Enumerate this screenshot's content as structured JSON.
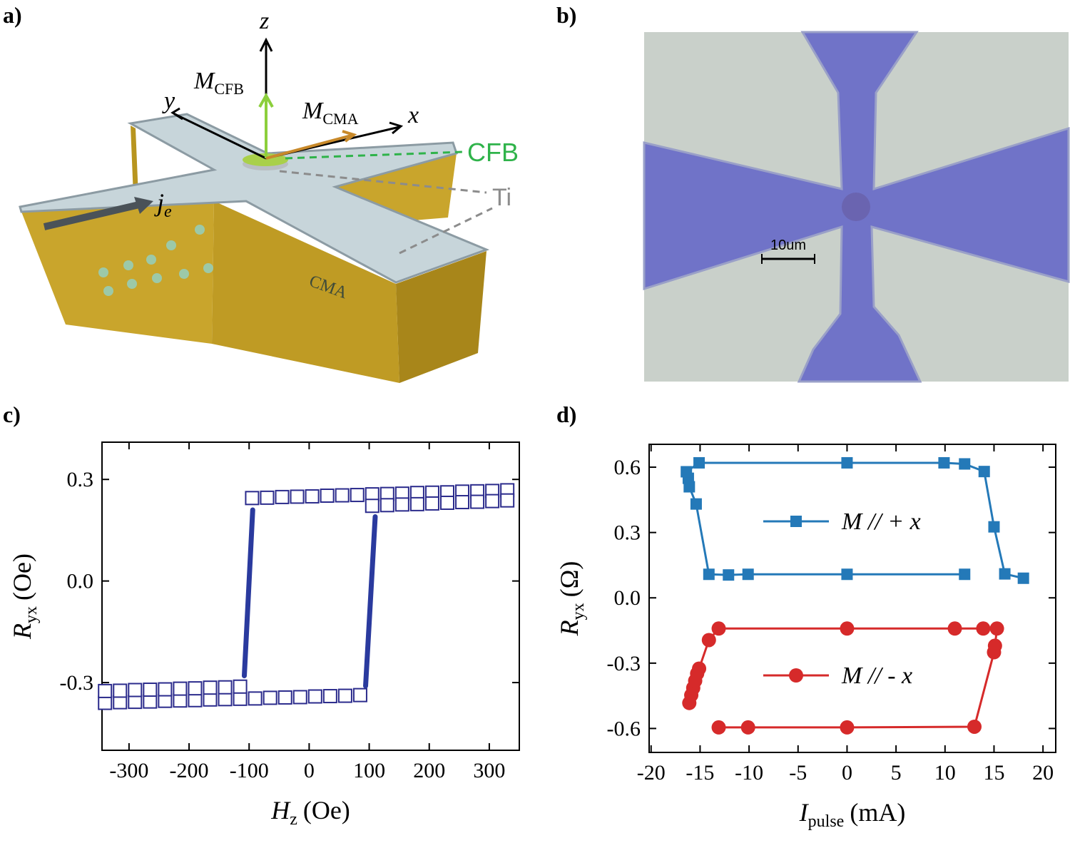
{
  "panels": {
    "a": {
      "label": "a)",
      "texts": {
        "z": "z",
        "m_cfb": {
          "main": "M",
          "sub": "CFB"
        },
        "y": "y",
        "m_cma": {
          "main": "M",
          "sub": "CMA"
        },
        "x": "x",
        "cfb": "CFB",
        "ti": "Ti",
        "je": {
          "main": "j",
          "sub": "e"
        },
        "cma": "CMA"
      }
    },
    "b": {
      "label": "b)",
      "scale_bar": "10um"
    },
    "c": {
      "label": "c)"
    },
    "d": {
      "label": "d)"
    }
  },
  "chart_data": [
    {
      "type": "line",
      "xlabel": {
        "main": "H",
        "sub": "z",
        "unit": "(Oe)"
      },
      "ylabel": {
        "main": "R",
        "sub": "yx",
        "unit": "(Oe)"
      },
      "xlim": [
        -345,
        350
      ],
      "ylim": [
        -0.5,
        0.41
      ],
      "xticks": [
        -300,
        -200,
        -100,
        0,
        100,
        200,
        300
      ],
      "yticks": [
        -0.3,
        {
          "value": 0,
          "label": "0.0"
        },
        0.3
      ],
      "series": [
        {
          "mode": "markers",
          "marker": "square-open",
          "color": "#2b2b8c",
          "x": [
            -340,
            -315,
            -290,
            -265,
            -240,
            -215,
            -190,
            -165,
            -140,
            -115,
            -90,
            -65,
            -40,
            -15,
            10,
            35,
            60,
            85
          ],
          "values": [
            -0.36,
            -0.358,
            -0.357,
            -0.356,
            -0.354,
            -0.353,
            -0.352,
            -0.35,
            -0.349,
            -0.348,
            -0.347,
            -0.345,
            -0.344,
            -0.343,
            -0.341,
            -0.34,
            -0.339,
            -0.337
          ]
        },
        {
          "mode": "markers",
          "marker": "square-open",
          "color": "#2b2b8c",
          "x": [
            -340,
            -315,
            -290,
            -265,
            -240,
            -215,
            -190,
            -165,
            -140,
            -115
          ],
          "values": [
            -0.325,
            -0.324,
            -0.322,
            -0.321,
            -0.32,
            -0.318,
            -0.317,
            -0.315,
            -0.314,
            -0.312
          ]
        },
        {
          "mode": "markers",
          "marker": "square-open",
          "color": "#2b2b8c",
          "x": [
            -95,
            -70,
            -45,
            -20,
            5,
            30,
            55,
            80,
            105,
            130,
            155,
            180,
            205,
            230,
            255,
            280,
            305,
            330
          ],
          "values": [
            0.245,
            0.246,
            0.248,
            0.249,
            0.25,
            0.252,
            0.253,
            0.254,
            0.256,
            0.257,
            0.258,
            0.26,
            0.261,
            0.262,
            0.264,
            0.265,
            0.266,
            0.268
          ]
        },
        {
          "mode": "markers",
          "marker": "square-open",
          "color": "#2b2b8c",
          "x": [
            105,
            130,
            155,
            180,
            205,
            230,
            255,
            280,
            305,
            330
          ],
          "values": [
            0.222,
            0.224,
            0.226,
            0.227,
            0.229,
            0.231,
            0.233,
            0.234,
            0.236,
            0.238
          ]
        },
        {
          "mode": "line",
          "color": "#2a3a9e",
          "x": [
            -108,
            -94
          ],
          "values": [
            -0.28,
            0.21
          ]
        },
        {
          "mode": "line",
          "color": "#2a3a9e",
          "x": [
            94,
            110
          ],
          "values": [
            -0.31,
            0.19
          ]
        }
      ]
    },
    {
      "type": "line",
      "xlabel": {
        "main": "I",
        "sub": "pulse",
        "unit": "(mA)"
      },
      "ylabel": {
        "main": "R",
        "sub": "yx",
        "unit": "(Ω)"
      },
      "xlim": [
        -20.2,
        21.3
      ],
      "ylim": [
        -0.71,
        0.705
      ],
      "xticks": [
        -20,
        -15,
        -10,
        -5,
        0,
        5,
        10,
        15,
        20
      ],
      "yticks": [
        -0.6,
        -0.3,
        {
          "value": 0,
          "label": "0.0"
        },
        0.3,
        0.6
      ],
      "legend": "center",
      "series": [
        {
          "name": "M // + x",
          "mode": "line-markers",
          "marker": "square",
          "color": "#2479b8",
          "x": [
            12.0,
            0,
            -10.1,
            -12.1,
            -14.1,
            -15.4,
            -16.1,
            -16.2,
            -16.4,
            -15.1,
            0,
            9.9,
            12.0,
            14.0,
            15.0,
            16.1,
            18.0
          ],
          "values": [
            0.108,
            0.108,
            0.108,
            0.105,
            0.108,
            0.431,
            0.51,
            0.549,
            0.579,
            0.62,
            0.62,
            0.62,
            0.615,
            0.58,
            0.326,
            0.11,
            0.09
          ]
        },
        {
          "name": "M // - x",
          "mode": "line-markers",
          "marker": "circle",
          "color": "#d62a2a",
          "x": [
            -16.1,
            -15.9,
            -15.7,
            -15.5,
            -15.3,
            -15.1,
            -14.1,
            -13.1,
            0,
            11.0,
            13.9,
            15.3,
            15.1,
            15.0,
            13.0,
            0,
            -10.1,
            -13.1
          ],
          "values": [
            -0.483,
            -0.447,
            -0.414,
            -0.381,
            -0.348,
            -0.325,
            -0.194,
            -0.141,
            -0.141,
            -0.141,
            -0.141,
            -0.141,
            -0.22,
            -0.25,
            -0.592,
            -0.595,
            -0.595,
            -0.595
          ]
        }
      ]
    }
  ]
}
